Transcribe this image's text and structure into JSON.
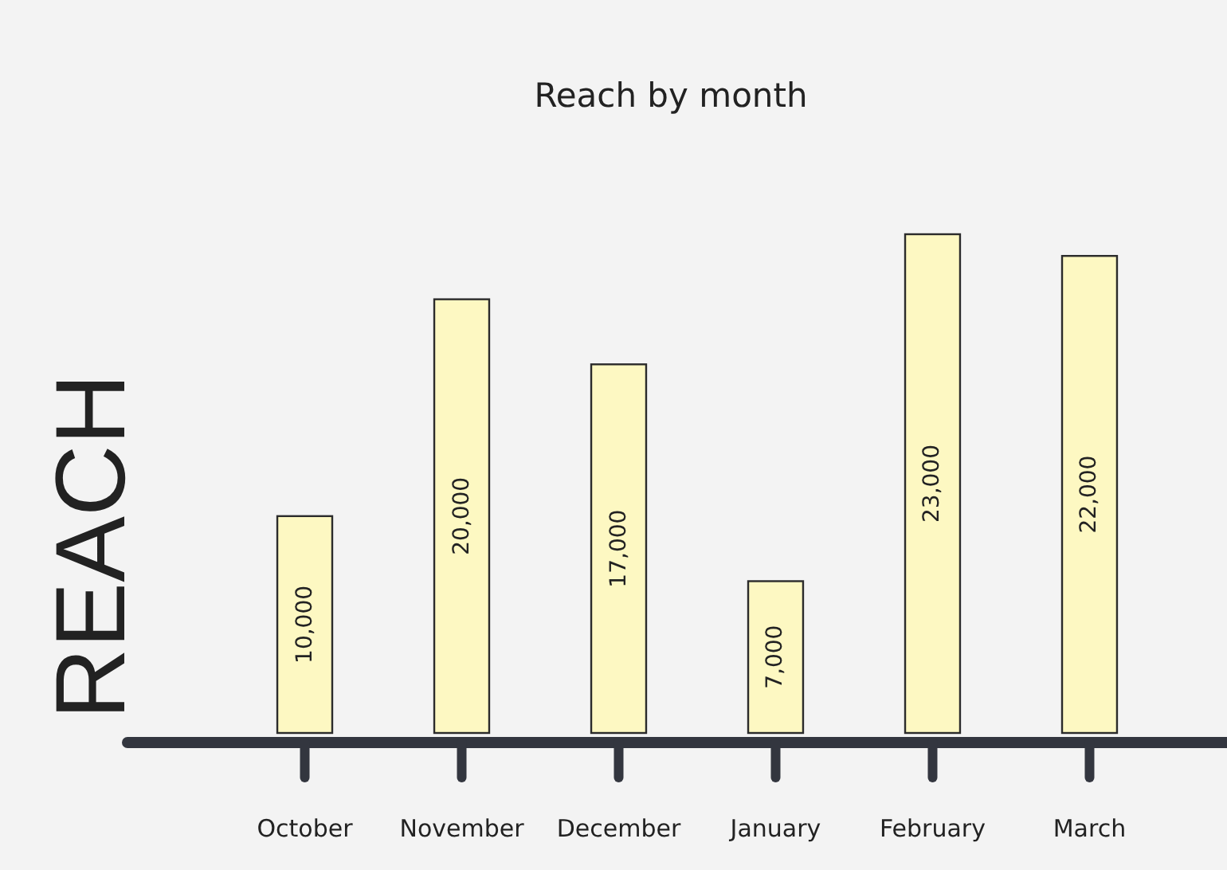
{
  "chart_data": {
    "type": "bar",
    "title": "Reach by month",
    "ylabel": "REACH",
    "categories": [
      "October",
      "November",
      "December",
      "January",
      "February",
      "March"
    ],
    "values": [
      10000,
      20000,
      17000,
      7000,
      23000,
      22000
    ],
    "value_labels": [
      "10,000",
      "20,000",
      "17,000",
      "7,000",
      "23,000",
      "22,000"
    ],
    "color": "#fdf8c2"
  }
}
